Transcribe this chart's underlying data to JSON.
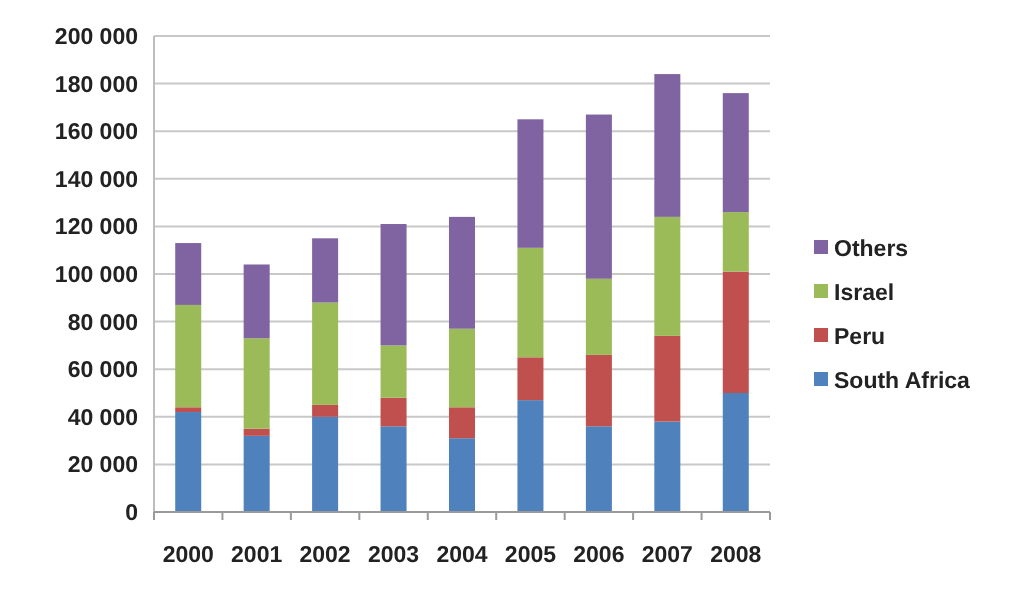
{
  "chart_data": {
    "type": "bar",
    "stacked": true,
    "categories": [
      "2000",
      "2001",
      "2002",
      "2003",
      "2004",
      "2005",
      "2006",
      "2007",
      "2008"
    ],
    "series": [
      {
        "name": "South Africa",
        "color": "#4f81bd",
        "values": [
          42000,
          32000,
          40000,
          36000,
          31000,
          47000,
          36000,
          38000,
          50000
        ]
      },
      {
        "name": "Peru",
        "color": "#c0504d",
        "values": [
          2000,
          3000,
          5000,
          12000,
          13000,
          18000,
          30000,
          36000,
          51000
        ]
      },
      {
        "name": "Israel",
        "color": "#9bbb59",
        "values": [
          43000,
          38000,
          43000,
          22000,
          33000,
          46000,
          32000,
          50000,
          25000
        ]
      },
      {
        "name": "Others",
        "color": "#8064a2",
        "values": [
          26000,
          31000,
          27000,
          51000,
          47000,
          54000,
          69000,
          60000,
          50000
        ]
      }
    ],
    "ylim": [
      0,
      200000
    ],
    "yticks": [
      {
        "value": 0,
        "label": "0"
      },
      {
        "value": 20000,
        "label": "20 000"
      },
      {
        "value": 40000,
        "label": "40 000"
      },
      {
        "value": 60000,
        "label": "60 000"
      },
      {
        "value": 80000,
        "label": "80 000"
      },
      {
        "value": 100000,
        "label": "100 000"
      },
      {
        "value": 120000,
        "label": "120 000"
      },
      {
        "value": 140000,
        "label": "140 000"
      },
      {
        "value": 160000,
        "label": "160 000"
      },
      {
        "value": 180000,
        "label": "180 000"
      },
      {
        "value": 200000,
        "label": "200 000"
      }
    ],
    "grid": "y",
    "legend": "right"
  }
}
